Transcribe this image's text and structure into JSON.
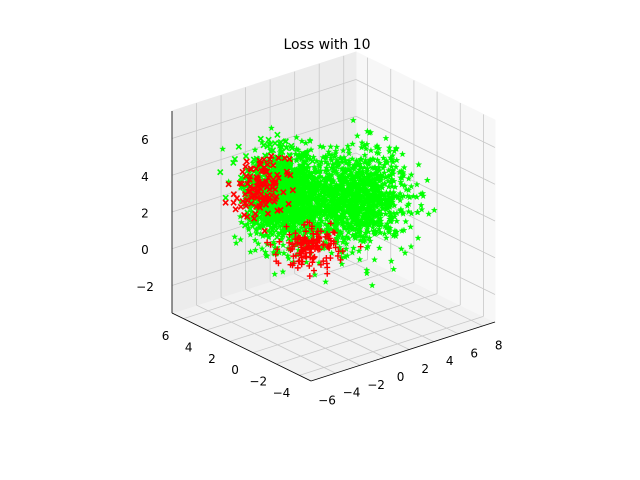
{
  "chart_data": {
    "type": "scatter",
    "projection": "3d",
    "title": "Loss with 10",
    "xlabel": "",
    "ylabel": "",
    "zlabel": "",
    "grid": true,
    "legend": "none",
    "xlim": [
      -5,
      7
    ],
    "ylim": [
      -6,
      9
    ],
    "zlim": [
      -3.5,
      7.5
    ],
    "x_ticks": [
      "−4",
      "−2",
      "0",
      "2",
      "4",
      "6"
    ],
    "y_ticks": [
      "8",
      "6",
      "4",
      "2",
      "0",
      "−2",
      "−4",
      "−6"
    ],
    "z_ticks": [
      "−2",
      "0",
      "2",
      "4",
      "6"
    ],
    "series": [
      {
        "marker": "star",
        "color": "#00ff00",
        "clusters": [
          {
            "center": [
              1.5,
              4.0,
              2.2
            ],
            "spread": [
              1.3,
              1.6,
              1.2
            ],
            "count": 1100
          },
          {
            "center": [
              2.2,
              -1.0,
              3.0
            ],
            "spread": [
              1.2,
              1.3,
              1.2
            ],
            "count": 900
          }
        ]
      },
      {
        "marker": "x",
        "color": "#00ff00",
        "clusters": [
          {
            "center": [
              2.4,
              -1.5,
              3.6
            ],
            "spread": [
              1.0,
              1.1,
              1.0
            ],
            "count": 500
          }
        ]
      },
      {
        "marker": "x",
        "color": "#ff0000",
        "clusters": [
          {
            "center": [
              3.0,
              -2.5,
              3.8
            ],
            "spread": [
              0.6,
              0.9,
              0.8
            ],
            "count": 120
          }
        ]
      },
      {
        "marker": "plus",
        "color": "#ff0000",
        "clusters": [
          {
            "center": [
              3.4,
              2.0,
              -0.6
            ],
            "spread": [
              0.8,
              1.0,
              0.5
            ],
            "count": 140
          }
        ]
      }
    ]
  }
}
